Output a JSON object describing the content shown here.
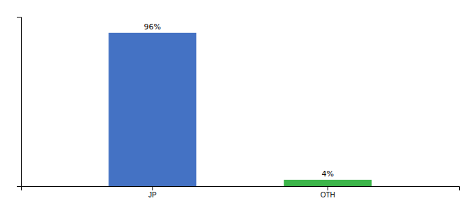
{
  "chart_data": {
    "type": "bar",
    "categories": [
      "JP",
      "OTH"
    ],
    "values": [
      96,
      4
    ],
    "colors": [
      "#4472c4",
      "#3cb54a"
    ],
    "value_labels": [
      "96%",
      "4%"
    ],
    "data_labels": true,
    "ylim": [
      0,
      106
    ],
    "tick_labels": "x",
    "grid": false
  }
}
